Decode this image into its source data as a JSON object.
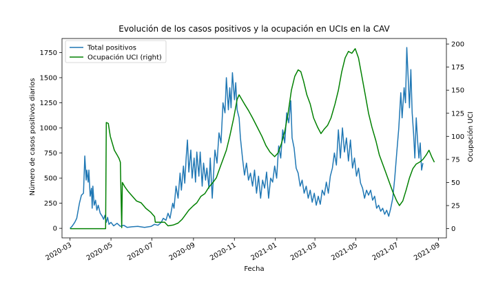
{
  "chart_data": {
    "type": "line",
    "title": "Evolución de los casos positivos y la ocupación en UCIs en la CAV",
    "xlabel": "Fecha",
    "ylabel": "Número de casos positivos diarios",
    "ylabel_right": "Ocupación UCI",
    "x_range": [
      "2020-02-18",
      "2021-09-13"
    ],
    "ylim": [
      -95,
      1890
    ],
    "ylim_right": [
      -10,
      206
    ],
    "x_ticks": [
      "2020-03",
      "2020-05",
      "2020-07",
      "2020-09",
      "2020-11",
      "2021-01",
      "2021-03",
      "2021-05",
      "2021-07",
      "2021-09"
    ],
    "y_ticks": [
      0,
      250,
      500,
      750,
      1000,
      1250,
      1500,
      1750
    ],
    "y_ticks_right": [
      0,
      25,
      50,
      75,
      100,
      125,
      150,
      175,
      200
    ],
    "legend_position": "upper left",
    "grid": false,
    "series": [
      {
        "name": "Total positivos",
        "color": "#1f77b4",
        "axis": "left",
        "points": [
          [
            "2020-03-01",
            0
          ],
          [
            "2020-03-04",
            20
          ],
          [
            "2020-03-08",
            60
          ],
          [
            "2020-03-11",
            100
          ],
          [
            "2020-03-15",
            250
          ],
          [
            "2020-03-18",
            330
          ],
          [
            "2020-03-21",
            350
          ],
          [
            "2020-03-23",
            720
          ],
          [
            "2020-03-25",
            480
          ],
          [
            "2020-03-26",
            580
          ],
          [
            "2020-03-28",
            460
          ],
          [
            "2020-03-29",
            580
          ],
          [
            "2020-03-31",
            320
          ],
          [
            "2020-04-02",
            400
          ],
          [
            "2020-04-03",
            200
          ],
          [
            "2020-04-04",
            420
          ],
          [
            "2020-04-06",
            230
          ],
          [
            "2020-04-08",
            280
          ],
          [
            "2020-04-10",
            180
          ],
          [
            "2020-04-12",
            230
          ],
          [
            "2020-04-15",
            150
          ],
          [
            "2020-04-18",
            120
          ],
          [
            "2020-04-20",
            90
          ],
          [
            "2020-04-22",
            130
          ],
          [
            "2020-04-24",
            60
          ],
          [
            "2020-04-26",
            110
          ],
          [
            "2020-04-28",
            40
          ],
          [
            "2020-05-01",
            60
          ],
          [
            "2020-05-05",
            25
          ],
          [
            "2020-05-10",
            50
          ],
          [
            "2020-05-15",
            20
          ],
          [
            "2020-05-20",
            30
          ],
          [
            "2020-05-25",
            10
          ],
          [
            "2020-06-01",
            15
          ],
          [
            "2020-06-10",
            20
          ],
          [
            "2020-06-20",
            10
          ],
          [
            "2020-06-30",
            20
          ],
          [
            "2020-07-05",
            40
          ],
          [
            "2020-07-10",
            30
          ],
          [
            "2020-07-15",
            60
          ],
          [
            "2020-07-18",
            100
          ],
          [
            "2020-07-22",
            80
          ],
          [
            "2020-07-25",
            150
          ],
          [
            "2020-07-28",
            100
          ],
          [
            "2020-08-01",
            250
          ],
          [
            "2020-08-03",
            200
          ],
          [
            "2020-08-06",
            420
          ],
          [
            "2020-08-09",
            300
          ],
          [
            "2020-08-12",
            550
          ],
          [
            "2020-08-14",
            380
          ],
          [
            "2020-08-17",
            620
          ],
          [
            "2020-08-19",
            450
          ],
          [
            "2020-08-21",
            700
          ],
          [
            "2020-08-23",
            880
          ],
          [
            "2020-08-25",
            560
          ],
          [
            "2020-08-28",
            780
          ],
          [
            "2020-08-30",
            500
          ],
          [
            "2020-09-02",
            700
          ],
          [
            "2020-09-04",
            460
          ],
          [
            "2020-09-06",
            760
          ],
          [
            "2020-09-09",
            520
          ],
          [
            "2020-09-11",
            760
          ],
          [
            "2020-09-14",
            420
          ],
          [
            "2020-09-16",
            650
          ],
          [
            "2020-09-19",
            480
          ],
          [
            "2020-09-21",
            600
          ],
          [
            "2020-09-24",
            400
          ],
          [
            "2020-09-26",
            700
          ],
          [
            "2020-09-29",
            300
          ],
          [
            "2020-10-01",
            550
          ],
          [
            "2020-10-03",
            780
          ],
          [
            "2020-10-06",
            650
          ],
          [
            "2020-10-09",
            950
          ],
          [
            "2020-10-12",
            850
          ],
          [
            "2020-10-15",
            1250
          ],
          [
            "2020-10-18",
            1150
          ],
          [
            "2020-10-20",
            1500
          ],
          [
            "2020-10-23",
            1180
          ],
          [
            "2020-10-25",
            1400
          ],
          [
            "2020-10-27",
            1200
          ],
          [
            "2020-10-29",
            1550
          ],
          [
            "2020-11-01",
            1280
          ],
          [
            "2020-11-03",
            1450
          ],
          [
            "2020-11-05",
            1180
          ],
          [
            "2020-11-08",
            1100
          ],
          [
            "2020-11-10",
            900
          ],
          [
            "2020-11-13",
            700
          ],
          [
            "2020-11-16",
            530
          ],
          [
            "2020-11-19",
            650
          ],
          [
            "2020-11-22",
            480
          ],
          [
            "2020-11-25",
            550
          ],
          [
            "2020-11-28",
            420
          ],
          [
            "2020-12-01",
            580
          ],
          [
            "2020-12-04",
            350
          ],
          [
            "2020-12-07",
            520
          ],
          [
            "2020-12-10",
            300
          ],
          [
            "2020-12-13",
            480
          ],
          [
            "2020-12-16",
            400
          ],
          [
            "2020-12-19",
            560
          ],
          [
            "2020-12-22",
            300
          ],
          [
            "2020-12-25",
            500
          ],
          [
            "2020-12-28",
            460
          ],
          [
            "2020-12-31",
            620
          ],
          [
            "2021-01-03",
            500
          ],
          [
            "2021-01-06",
            820
          ],
          [
            "2021-01-09",
            700
          ],
          [
            "2021-01-12",
            980
          ],
          [
            "2021-01-15",
            850
          ],
          [
            "2021-01-18",
            1150
          ],
          [
            "2021-01-21",
            1050
          ],
          [
            "2021-01-24",
            1270
          ],
          [
            "2021-01-26",
            900
          ],
          [
            "2021-01-29",
            800
          ],
          [
            "2021-02-01",
            600
          ],
          [
            "2021-02-04",
            550
          ],
          [
            "2021-02-07",
            420
          ],
          [
            "2021-02-10",
            480
          ],
          [
            "2021-02-13",
            350
          ],
          [
            "2021-02-16",
            420
          ],
          [
            "2021-02-19",
            300
          ],
          [
            "2021-02-22",
            380
          ],
          [
            "2021-02-25",
            260
          ],
          [
            "2021-02-28",
            350
          ],
          [
            "2021-03-03",
            230
          ],
          [
            "2021-03-06",
            320
          ],
          [
            "2021-03-09",
            240
          ],
          [
            "2021-03-12",
            380
          ],
          [
            "2021-03-15",
            330
          ],
          [
            "2021-03-18",
            460
          ],
          [
            "2021-03-21",
            350
          ],
          [
            "2021-03-24",
            520
          ],
          [
            "2021-03-27",
            600
          ],
          [
            "2021-03-30",
            750
          ],
          [
            "2021-04-02",
            630
          ],
          [
            "2021-04-05",
            980
          ],
          [
            "2021-04-08",
            700
          ],
          [
            "2021-04-11",
            1000
          ],
          [
            "2021-04-14",
            760
          ],
          [
            "2021-04-17",
            900
          ],
          [
            "2021-04-20",
            670
          ],
          [
            "2021-04-23",
            880
          ],
          [
            "2021-04-26",
            600
          ],
          [
            "2021-04-29",
            700
          ],
          [
            "2021-05-02",
            520
          ],
          [
            "2021-05-05",
            600
          ],
          [
            "2021-05-08",
            450
          ],
          [
            "2021-05-11",
            400
          ],
          [
            "2021-05-14",
            300
          ],
          [
            "2021-05-17",
            380
          ],
          [
            "2021-05-20",
            330
          ],
          [
            "2021-05-23",
            380
          ],
          [
            "2021-05-26",
            280
          ],
          [
            "2021-05-29",
            320
          ],
          [
            "2021-06-01",
            200
          ],
          [
            "2021-06-04",
            230
          ],
          [
            "2021-06-07",
            170
          ],
          [
            "2021-06-10",
            200
          ],
          [
            "2021-06-13",
            140
          ],
          [
            "2021-06-16",
            180
          ],
          [
            "2021-06-19",
            120
          ],
          [
            "2021-06-22",
            200
          ],
          [
            "2021-06-25",
            300
          ],
          [
            "2021-06-28",
            500
          ],
          [
            "2021-07-01",
            750
          ],
          [
            "2021-07-04",
            1000
          ],
          [
            "2021-07-07",
            1350
          ],
          [
            "2021-07-09",
            1100
          ],
          [
            "2021-07-12",
            1400
          ],
          [
            "2021-07-14",
            1250
          ],
          [
            "2021-07-16",
            1800
          ],
          [
            "2021-07-18",
            1500
          ],
          [
            "2021-07-20",
            1200
          ],
          [
            "2021-07-22",
            1580
          ],
          [
            "2021-07-24",
            1150
          ],
          [
            "2021-07-26",
            950
          ],
          [
            "2021-07-28",
            700
          ],
          [
            "2021-07-30",
            1100
          ],
          [
            "2021-08-01",
            880
          ],
          [
            "2021-08-03",
            700
          ],
          [
            "2021-08-05",
            850
          ],
          [
            "2021-08-07",
            580
          ],
          [
            "2021-08-09",
            650
          ]
        ]
      },
      {
        "name": "Ocupación UCI (right)",
        "color": "#008000",
        "axis": "right",
        "points": [
          [
            "2020-03-01",
            0
          ],
          [
            "2020-04-23",
            0
          ],
          [
            "2020-04-24",
            115
          ],
          [
            "2020-04-27",
            114
          ],
          [
            "2020-04-30",
            100
          ],
          [
            "2020-05-06",
            85
          ],
          [
            "2020-05-10",
            80
          ],
          [
            "2020-05-13",
            76
          ],
          [
            "2020-05-15",
            72
          ],
          [
            "2020-05-17",
            1
          ],
          [
            "2020-05-18",
            50
          ],
          [
            "2020-05-22",
            45
          ],
          [
            "2020-05-27",
            40
          ],
          [
            "2020-06-02",
            35
          ],
          [
            "2020-06-08",
            30
          ],
          [
            "2020-06-15",
            28
          ],
          [
            "2020-06-22",
            22
          ],
          [
            "2020-06-29",
            18
          ],
          [
            "2020-07-05",
            13
          ],
          [
            "2020-07-06",
            7
          ],
          [
            "2020-07-20",
            7
          ],
          [
            "2020-07-25",
            3
          ],
          [
            "2020-08-02",
            4
          ],
          [
            "2020-08-09",
            6
          ],
          [
            "2020-08-15",
            10
          ],
          [
            "2020-08-20",
            15
          ],
          [
            "2020-08-25",
            20
          ],
          [
            "2020-09-01",
            25
          ],
          [
            "2020-09-06",
            28
          ],
          [
            "2020-09-12",
            35
          ],
          [
            "2020-09-18",
            38
          ],
          [
            "2020-09-24",
            45
          ],
          [
            "2020-09-30",
            50
          ],
          [
            "2020-10-05",
            55
          ],
          [
            "2020-10-10",
            65
          ],
          [
            "2020-10-15",
            75
          ],
          [
            "2020-10-20",
            85
          ],
          [
            "2020-10-25",
            100
          ],
          [
            "2020-10-31",
            120
          ],
          [
            "2020-11-05",
            140
          ],
          [
            "2020-11-08",
            145
          ],
          [
            "2020-11-12",
            140
          ],
          [
            "2020-11-16",
            135
          ],
          [
            "2020-11-22",
            128
          ],
          [
            "2020-11-28",
            120
          ],
          [
            "2020-12-05",
            110
          ],
          [
            "2020-12-12",
            100
          ],
          [
            "2020-12-18",
            90
          ],
          [
            "2020-12-24",
            83
          ],
          [
            "2020-12-31",
            78
          ],
          [
            "2021-01-05",
            82
          ],
          [
            "2021-01-10",
            92
          ],
          [
            "2021-01-15",
            105
          ],
          [
            "2021-01-20",
            125
          ],
          [
            "2021-01-25",
            150
          ],
          [
            "2021-01-30",
            165
          ],
          [
            "2021-02-04",
            172
          ],
          [
            "2021-02-08",
            170
          ],
          [
            "2021-02-12",
            160
          ],
          [
            "2021-02-17",
            145
          ],
          [
            "2021-02-22",
            135
          ],
          [
            "2021-02-27",
            120
          ],
          [
            "2021-03-05",
            110
          ],
          [
            "2021-03-10",
            103
          ],
          [
            "2021-03-15",
            108
          ],
          [
            "2021-03-20",
            112
          ],
          [
            "2021-03-25",
            120
          ],
          [
            "2021-03-31",
            135
          ],
          [
            "2021-04-05",
            150
          ],
          [
            "2021-04-10",
            170
          ],
          [
            "2021-04-15",
            185
          ],
          [
            "2021-04-20",
            192
          ],
          [
            "2021-04-25",
            190
          ],
          [
            "2021-04-30",
            195
          ],
          [
            "2021-05-05",
            185
          ],
          [
            "2021-05-10",
            165
          ],
          [
            "2021-05-15",
            145
          ],
          [
            "2021-05-20",
            125
          ],
          [
            "2021-05-25",
            110
          ],
          [
            "2021-05-31",
            95
          ],
          [
            "2021-06-05",
            80
          ],
          [
            "2021-06-10",
            70
          ],
          [
            "2021-06-15",
            60
          ],
          [
            "2021-06-20",
            50
          ],
          [
            "2021-06-25",
            40
          ],
          [
            "2021-07-01",
            30
          ],
          [
            "2021-07-05",
            25
          ],
          [
            "2021-07-10",
            30
          ],
          [
            "2021-07-15",
            42
          ],
          [
            "2021-07-20",
            55
          ],
          [
            "2021-07-25",
            65
          ],
          [
            "2021-07-30",
            70
          ],
          [
            "2021-08-04",
            72
          ],
          [
            "2021-08-09",
            75
          ],
          [
            "2021-08-14",
            80
          ],
          [
            "2021-08-18",
            85
          ],
          [
            "2021-08-22",
            78
          ],
          [
            "2021-08-26",
            72
          ]
        ]
      }
    ]
  }
}
